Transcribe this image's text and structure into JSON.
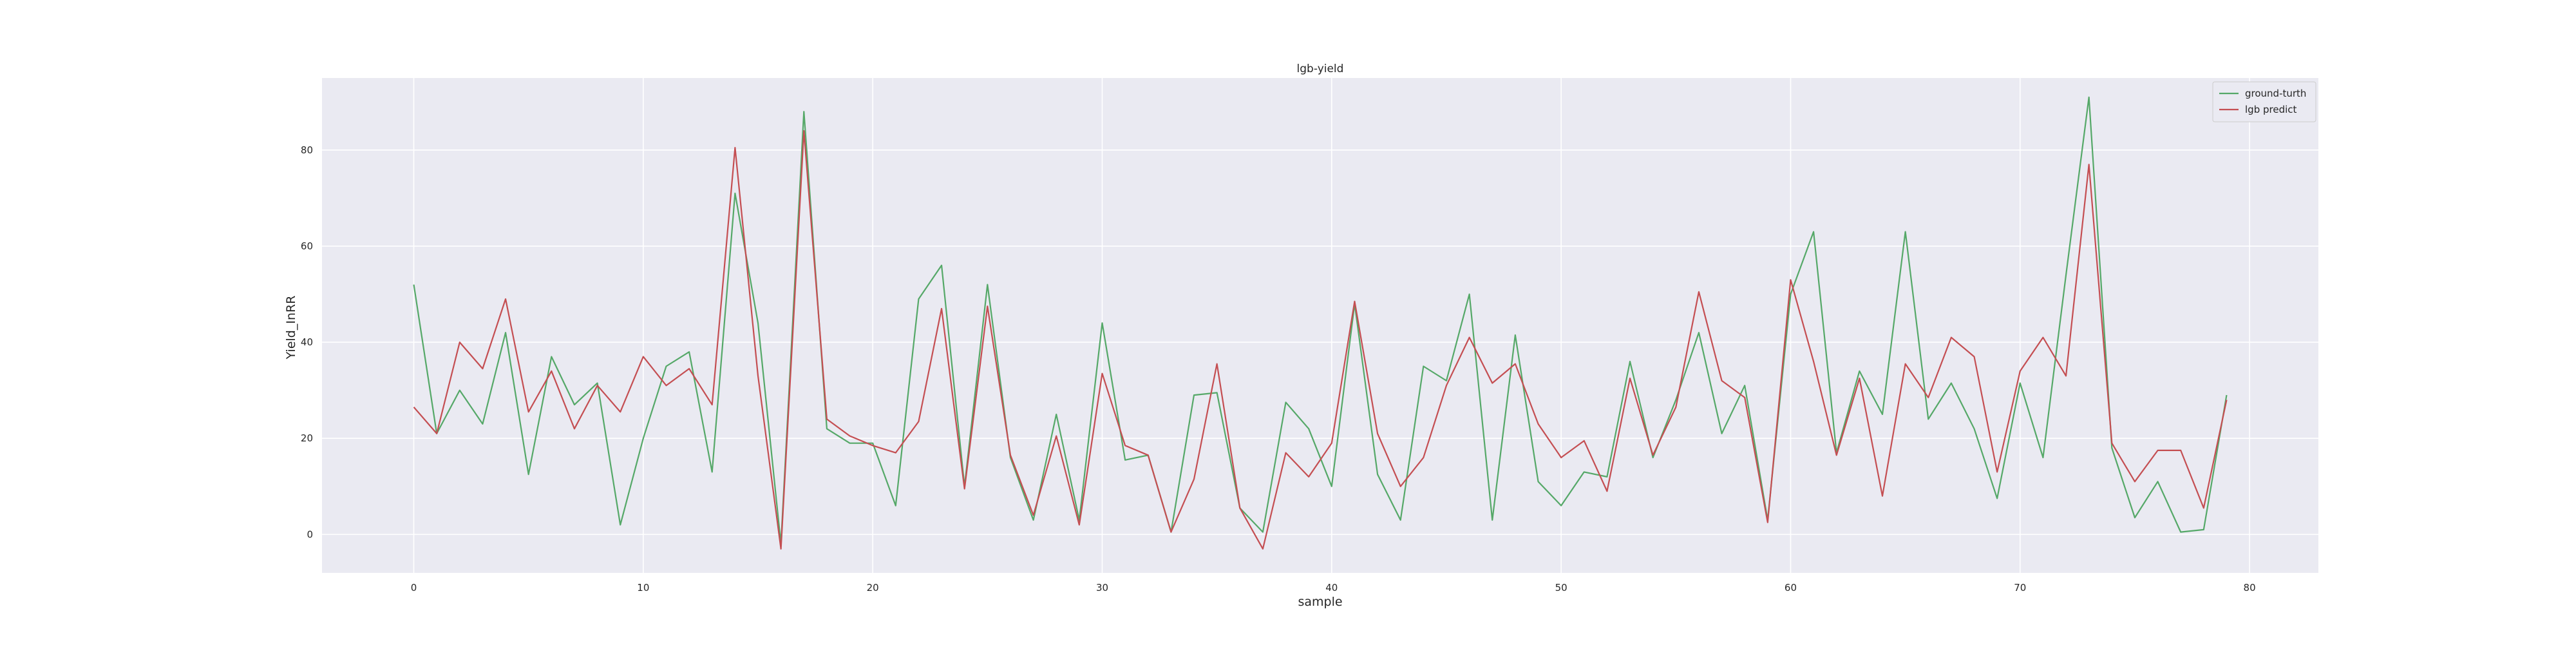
{
  "chart_data": {
    "type": "line",
    "title": "lgb-yield",
    "xlabel": "sample",
    "ylabel": "Yield_InRR",
    "xlim": [
      -4,
      83
    ],
    "ylim": [
      -8,
      95
    ],
    "xticks": [
      0,
      10,
      20,
      30,
      40,
      50,
      60,
      70,
      80
    ],
    "yticks": [
      0,
      20,
      40,
      60,
      80
    ],
    "grid": true,
    "legend_position": "top-right",
    "x": [
      0,
      1,
      2,
      3,
      4,
      5,
      6,
      7,
      8,
      9,
      10,
      11,
      12,
      13,
      14,
      15,
      16,
      17,
      18,
      19,
      20,
      21,
      22,
      23,
      24,
      25,
      26,
      27,
      28,
      29,
      30,
      31,
      32,
      33,
      34,
      35,
      36,
      37,
      38,
      39,
      40,
      41,
      42,
      43,
      44,
      45,
      46,
      47,
      48,
      49,
      50,
      51,
      52,
      53,
      54,
      55,
      56,
      57,
      58,
      59,
      60,
      61,
      62,
      63,
      64,
      65,
      66,
      67,
      68,
      69,
      70,
      71,
      72,
      73,
      74,
      75,
      76,
      77,
      78,
      79
    ],
    "series": [
      {
        "name": "ground-turth",
        "color": "#55a868",
        "values": [
          52,
          21,
          30,
          23,
          42,
          12.5,
          37,
          27,
          31.5,
          2,
          20,
          35,
          38,
          13,
          71,
          44,
          -2,
          88,
          22,
          19,
          19,
          6,
          49,
          56,
          10,
          52,
          16,
          3,
          25,
          3,
          44,
          15.5,
          16.5,
          0.5,
          29,
          29.5,
          5.5,
          0.5,
          27.5,
          22,
          10,
          48,
          12.5,
          3,
          35,
          32,
          50,
          3,
          41.5,
          11,
          6,
          13,
          12,
          36,
          16,
          28,
          42,
          21,
          31,
          3,
          50,
          63,
          17,
          34,
          25,
          63,
          24,
          31.5,
          22,
          7.5,
          31.5,
          16,
          54,
          91,
          18,
          3.5,
          11,
          0.5,
          1,
          29
        ]
      },
      {
        "name": "lgb predict",
        "color": "#c44e52",
        "values": [
          26.5,
          21,
          40,
          34.5,
          49,
          25.5,
          34,
          22,
          31,
          25.5,
          37,
          31,
          34.5,
          27,
          80.5,
          33,
          -3,
          84,
          24,
          20.5,
          18.5,
          17,
          23.5,
          47,
          9.5,
          47.5,
          16.5,
          4,
          20.5,
          2,
          33.5,
          18.5,
          16.5,
          0.5,
          11.5,
          35.5,
          5.5,
          -3,
          17,
          12,
          19,
          48.5,
          21,
          10,
          16,
          31,
          41,
          31.5,
          35.5,
          23,
          16,
          19.5,
          9,
          32.5,
          16.5,
          26.5,
          50.5,
          32,
          28.5,
          2.5,
          53,
          36,
          16.5,
          32.5,
          8,
          35.5,
          28.5,
          41,
          37,
          13,
          34,
          41,
          33,
          77,
          19,
          11,
          17.5,
          17.5,
          5.5,
          28
        ]
      }
    ]
  }
}
